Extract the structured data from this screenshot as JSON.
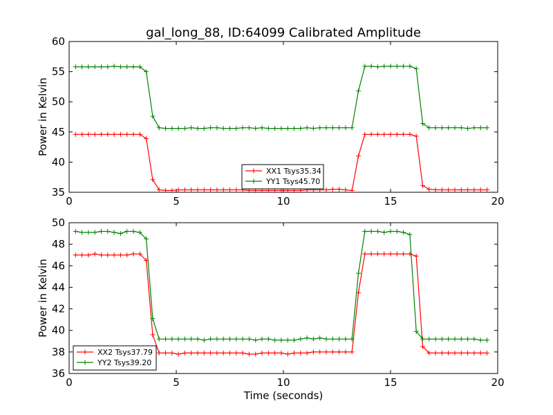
{
  "title": "gal_long_88, ID:64099 Calibrated Amplitude",
  "colors": {
    "red": "#ff0000",
    "green": "#008000"
  },
  "chart_data": [
    {
      "type": "line",
      "title": "gal_long_88, ID:64099 Calibrated Amplitude",
      "xlabel": "",
      "ylabel": "Power in Kelvin",
      "xlim": [
        0,
        20
      ],
      "ylim": [
        35,
        60
      ],
      "xticks": [
        0,
        5,
        10,
        15,
        20
      ],
      "yticks": [
        35,
        40,
        45,
        50,
        55,
        60
      ],
      "grid": false,
      "legend_position": "lower-center",
      "series": [
        {
          "name": "XX1 Tsys35.34",
          "color": "#ff0000",
          "marker": "+",
          "x": [
            0.3,
            0.6,
            0.9,
            1.2,
            1.5,
            1.8,
            2.1,
            2.4,
            2.7,
            3.0,
            3.3,
            3.6,
            3.9,
            4.2,
            4.5,
            4.8,
            5.1,
            5.4,
            5.7,
            6.0,
            6.3,
            6.6,
            6.9,
            7.2,
            7.5,
            7.8,
            8.1,
            8.4,
            8.7,
            9.0,
            9.3,
            9.6,
            9.9,
            10.2,
            10.5,
            10.8,
            11.1,
            11.4,
            11.7,
            12.0,
            12.3,
            12.6,
            12.9,
            13.2,
            13.5,
            13.8,
            14.1,
            14.4,
            14.7,
            15.0,
            15.3,
            15.6,
            15.9,
            16.2,
            16.5,
            16.8,
            17.1,
            17.4,
            17.7,
            18.0,
            18.3,
            18.6,
            18.9,
            19.2,
            19.5
          ],
          "y": [
            44.6,
            44.6,
            44.6,
            44.6,
            44.6,
            44.6,
            44.6,
            44.6,
            44.6,
            44.6,
            44.6,
            43.9,
            37.1,
            35.4,
            35.3,
            35.3,
            35.4,
            35.4,
            35.4,
            35.4,
            35.4,
            35.4,
            35.4,
            35.4,
            35.4,
            35.4,
            35.4,
            35.3,
            35.3,
            35.3,
            35.3,
            35.3,
            35.3,
            35.3,
            35.3,
            35.3,
            35.4,
            35.4,
            35.4,
            35.4,
            35.5,
            35.5,
            35.4,
            35.3,
            41.0,
            44.6,
            44.6,
            44.6,
            44.6,
            44.6,
            44.6,
            44.6,
            44.6,
            44.3,
            36.1,
            35.5,
            35.4,
            35.4,
            35.4,
            35.4,
            35.4,
            35.4,
            35.4,
            35.4,
            35.4
          ]
        },
        {
          "name": "YY1 Tsys45.70",
          "color": "#008000",
          "marker": "+",
          "x": [
            0.3,
            0.6,
            0.9,
            1.2,
            1.5,
            1.8,
            2.1,
            2.4,
            2.7,
            3.0,
            3.3,
            3.6,
            3.9,
            4.2,
            4.5,
            4.8,
            5.1,
            5.4,
            5.7,
            6.0,
            6.3,
            6.6,
            6.9,
            7.2,
            7.5,
            7.8,
            8.1,
            8.4,
            8.7,
            9.0,
            9.3,
            9.6,
            9.9,
            10.2,
            10.5,
            10.8,
            11.1,
            11.4,
            11.7,
            12.0,
            12.3,
            12.6,
            12.9,
            13.2,
            13.5,
            13.8,
            14.1,
            14.4,
            14.7,
            15.0,
            15.3,
            15.6,
            15.9,
            16.2,
            16.5,
            16.8,
            17.1,
            17.4,
            17.7,
            18.0,
            18.3,
            18.6,
            18.9,
            19.2,
            19.5
          ],
          "y": [
            55.8,
            55.8,
            55.8,
            55.8,
            55.8,
            55.8,
            55.9,
            55.8,
            55.8,
            55.8,
            55.8,
            55.0,
            47.6,
            45.7,
            45.6,
            45.6,
            45.6,
            45.6,
            45.7,
            45.6,
            45.6,
            45.7,
            45.7,
            45.6,
            45.6,
            45.6,
            45.7,
            45.7,
            45.6,
            45.7,
            45.6,
            45.6,
            45.6,
            45.6,
            45.6,
            45.6,
            45.7,
            45.6,
            45.7,
            45.7,
            45.7,
            45.7,
            45.7,
            45.7,
            51.8,
            55.9,
            55.9,
            55.8,
            55.9,
            55.9,
            55.9,
            55.9,
            55.9,
            55.5,
            46.4,
            45.7,
            45.7,
            45.7,
            45.7,
            45.7,
            45.7,
            45.6,
            45.7,
            45.7,
            45.7
          ]
        }
      ]
    },
    {
      "type": "line",
      "title": "",
      "xlabel": "Time (seconds)",
      "ylabel": "Power in Kelvin",
      "xlim": [
        0,
        20
      ],
      "ylim": [
        36,
        50
      ],
      "xticks": [
        0,
        5,
        10,
        15,
        20
      ],
      "yticks": [
        36,
        38,
        40,
        42,
        44,
        46,
        48,
        50
      ],
      "grid": false,
      "legend_position": "lower-left",
      "series": [
        {
          "name": "XX2 Tsys37.79",
          "color": "#ff0000",
          "marker": "+",
          "x": [
            0.3,
            0.6,
            0.9,
            1.2,
            1.5,
            1.8,
            2.1,
            2.4,
            2.7,
            3.0,
            3.3,
            3.6,
            3.9,
            4.2,
            4.5,
            4.8,
            5.1,
            5.4,
            5.7,
            6.0,
            6.3,
            6.6,
            6.9,
            7.2,
            7.5,
            7.8,
            8.1,
            8.4,
            8.7,
            9.0,
            9.3,
            9.6,
            9.9,
            10.2,
            10.5,
            10.8,
            11.1,
            11.4,
            11.7,
            12.0,
            12.3,
            12.6,
            12.9,
            13.2,
            13.5,
            13.8,
            14.1,
            14.4,
            14.7,
            15.0,
            15.3,
            15.6,
            15.9,
            16.2,
            16.5,
            16.8,
            17.1,
            17.4,
            17.7,
            18.0,
            18.3,
            18.6,
            18.9,
            19.2,
            19.5
          ],
          "y": [
            47.0,
            47.0,
            47.0,
            47.1,
            47.0,
            47.0,
            47.0,
            47.0,
            47.0,
            47.1,
            47.1,
            46.5,
            39.6,
            37.9,
            37.9,
            37.9,
            37.8,
            37.9,
            37.9,
            37.9,
            37.9,
            37.9,
            37.9,
            37.9,
            37.9,
            37.9,
            37.9,
            37.8,
            37.8,
            37.9,
            37.9,
            37.9,
            37.9,
            37.8,
            37.9,
            37.9,
            37.9,
            38.0,
            38.0,
            38.0,
            38.0,
            38.0,
            38.0,
            38.0,
            43.5,
            47.1,
            47.1,
            47.1,
            47.1,
            47.1,
            47.1,
            47.1,
            47.1,
            46.9,
            38.5,
            37.9,
            37.9,
            37.9,
            37.9,
            37.9,
            37.9,
            37.9,
            37.9,
            37.9,
            37.9
          ]
        },
        {
          "name": "YY2 Tsys39.20",
          "color": "#008000",
          "marker": "+",
          "x": [
            0.3,
            0.6,
            0.9,
            1.2,
            1.5,
            1.8,
            2.1,
            2.4,
            2.7,
            3.0,
            3.3,
            3.6,
            3.9,
            4.2,
            4.5,
            4.8,
            5.1,
            5.4,
            5.7,
            6.0,
            6.3,
            6.6,
            6.9,
            7.2,
            7.5,
            7.8,
            8.1,
            8.4,
            8.7,
            9.0,
            9.3,
            9.6,
            9.9,
            10.2,
            10.5,
            10.8,
            11.1,
            11.4,
            11.7,
            12.0,
            12.3,
            12.6,
            12.9,
            13.2,
            13.5,
            13.8,
            14.1,
            14.4,
            14.7,
            15.0,
            15.3,
            15.6,
            15.9,
            16.2,
            16.5,
            16.8,
            17.1,
            17.4,
            17.7,
            18.0,
            18.3,
            18.6,
            18.9,
            19.2,
            19.5
          ],
          "y": [
            49.2,
            49.1,
            49.1,
            49.1,
            49.2,
            49.2,
            49.1,
            49.0,
            49.2,
            49.2,
            49.1,
            48.5,
            41.1,
            39.2,
            39.2,
            39.2,
            39.2,
            39.2,
            39.2,
            39.2,
            39.1,
            39.2,
            39.2,
            39.2,
            39.2,
            39.2,
            39.2,
            39.2,
            39.1,
            39.2,
            39.2,
            39.1,
            39.1,
            39.1,
            39.1,
            39.2,
            39.3,
            39.2,
            39.3,
            39.2,
            39.2,
            39.2,
            39.2,
            39.2,
            45.3,
            49.2,
            49.2,
            49.2,
            49.1,
            49.2,
            49.2,
            49.1,
            48.9,
            39.9,
            39.2,
            39.2,
            39.2,
            39.2,
            39.2,
            39.2,
            39.2,
            39.2,
            39.2,
            39.1,
            39.1
          ]
        }
      ]
    }
  ]
}
